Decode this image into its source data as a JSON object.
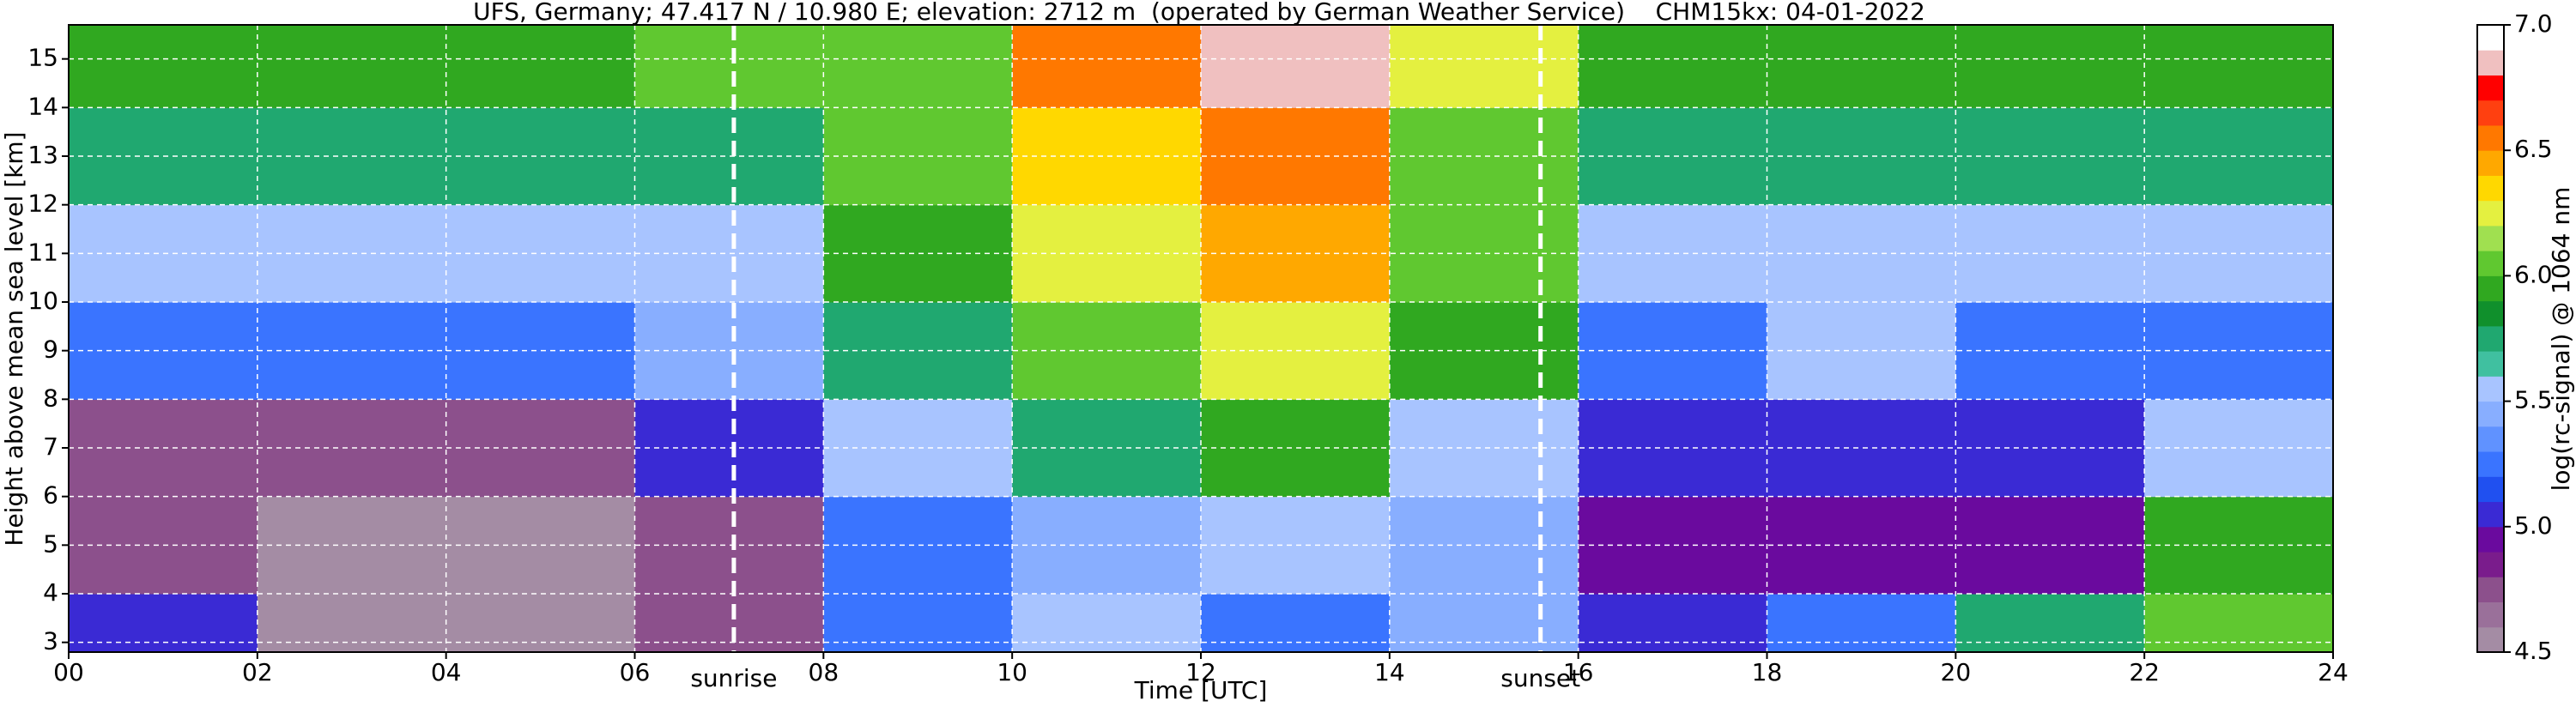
{
  "chart_data": {
    "type": "heatmap",
    "title": "UFS, Germany; 47.417 N / 10.980 E; elevation: 2712 m  (operated by German Weather Service)    CHM15kx: 04-01-2022",
    "x_label": "Time [UTC]",
    "y_label": "Height above mean sea level [km]",
    "colorbar_label": "log(rc-signal) @ 1064 nm",
    "xlim": [
      0,
      24
    ],
    "ylim": [
      2.8,
      15.7
    ],
    "xticks": [
      {
        "value": 0,
        "label": "00"
      },
      {
        "value": 2,
        "label": "02"
      },
      {
        "value": 4,
        "label": "04"
      },
      {
        "value": 6,
        "label": "06"
      },
      {
        "value": 8,
        "label": "08"
      },
      10,
      12,
      14,
      16,
      18,
      20,
      22,
      24
    ],
    "yticks": [
      3,
      4,
      5,
      6,
      7,
      8,
      9,
      10,
      11,
      12,
      13,
      14,
      15
    ],
    "grid": true,
    "x_bins": [
      0,
      2,
      4,
      6,
      8,
      10,
      12,
      14,
      16,
      18,
      20,
      22,
      24
    ],
    "y_bins": [
      2.8,
      4,
      6,
      8,
      10,
      12,
      14,
      15.7
    ],
    "z": [
      [
        5.0,
        4.6,
        4.5,
        4.7,
        5.3,
        5.6,
        5.2,
        5.4,
        5.0,
        5.2,
        5.8,
        6.0
      ],
      [
        4.7,
        4.6,
        4.6,
        4.7,
        5.3,
        5.4,
        5.5,
        5.4,
        4.9,
        4.9,
        4.9,
        5.9
      ],
      [
        4.8,
        4.8,
        4.8,
        5.0,
        5.6,
        5.8,
        5.9,
        5.6,
        5.0,
        5.0,
        5.0,
        5.6
      ],
      [
        5.3,
        5.2,
        5.2,
        5.4,
        5.8,
        6.1,
        6.2,
        5.9,
        5.3,
        5.6,
        5.3,
        5.3
      ],
      [
        5.5,
        5.5,
        5.5,
        5.6,
        5.9,
        6.2,
        6.4,
        6.0,
        5.5,
        5.6,
        5.5,
        5.5
      ],
      [
        5.7,
        5.7,
        5.7,
        5.8,
        6.0,
        6.3,
        6.6,
        6.1,
        5.7,
        5.7,
        5.7,
        5.7
      ],
      [
        5.9,
        5.9,
        5.9,
        6.0,
        6.1,
        6.5,
        6.8,
        6.2,
        5.9,
        5.9,
        5.9,
        5.9
      ]
    ],
    "clim": [
      4.5,
      7.0
    ],
    "cticks": [
      4.5,
      {
        "value": 5.0,
        "label": "5.0"
      },
      5.5,
      {
        "value": 6.0,
        "label": "6.0"
      },
      6.5,
      {
        "value": 7.0,
        "label": "7.0"
      }
    ],
    "colors": [
      "#a48ca4",
      "#9a709a",
      "#8c508c",
      "#7a1c8c",
      "#6a0a9e",
      "#3a2ad4",
      "#2050f0",
      "#3a74ff",
      "#6092ff",
      "#88aeff",
      "#a8c4ff",
      "#40c0a0",
      "#20a870",
      "#10902c",
      "#30a820",
      "#60c830",
      "#a0e050",
      "#e4f040",
      "#ffd800",
      "#ffa800",
      "#ff7800",
      "#ff4010",
      "#ff0000",
      "#f0c0c0",
      "#ffffff"
    ],
    "annotations": [
      {
        "x": 7.05,
        "label": "sunrise"
      },
      {
        "x": 15.6,
        "label": "sunset"
      }
    ]
  }
}
